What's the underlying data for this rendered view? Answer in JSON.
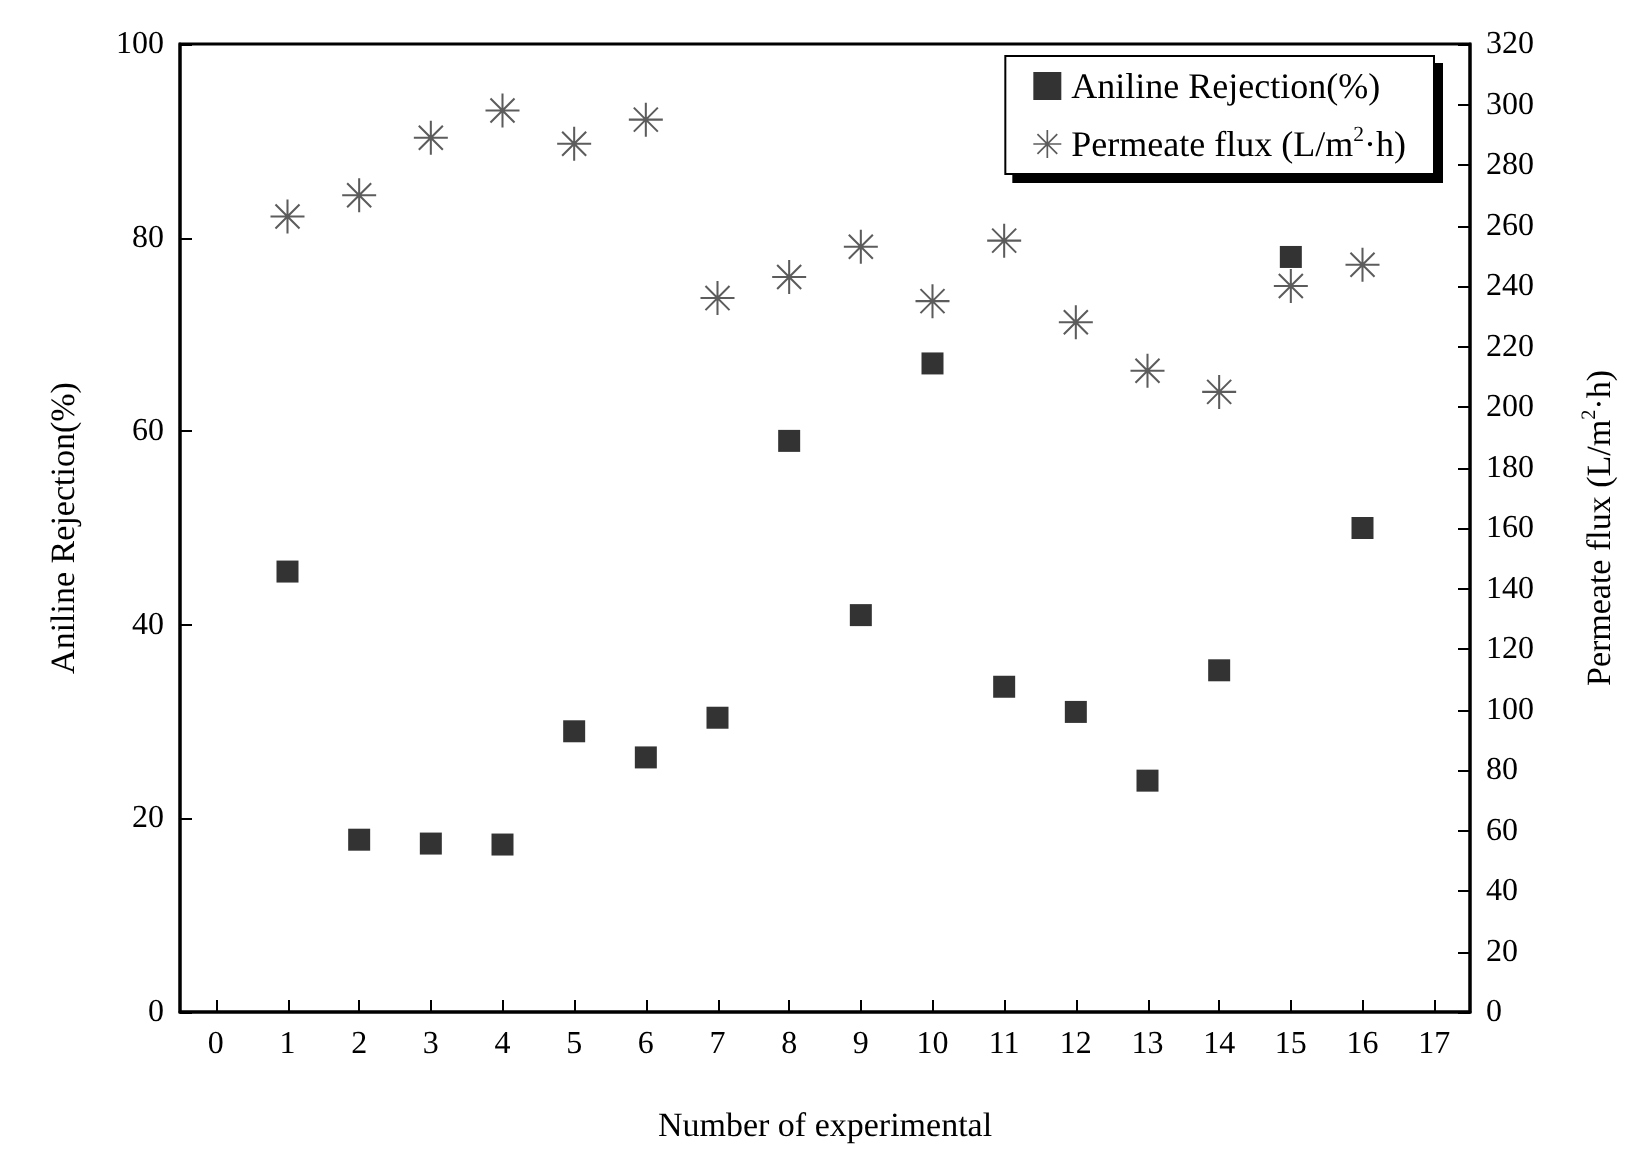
{
  "chart_data": {
    "type": "scatter",
    "xlabel": "Number of experimental",
    "ylabel": "Aniline Rejection(%)",
    "y2label": "Permeate flux (L/m$^{2}$·h)",
    "x": [
      1,
      2,
      3,
      4,
      5,
      6,
      7,
      8,
      9,
      10,
      11,
      12,
      13,
      14,
      15,
      16
    ],
    "series": [
      {
        "name": "Aniline Rejection(%)",
        "color": "#000000",
        "marker": "square",
        "values": [
          45.5,
          17.8,
          17.4,
          17.3,
          29,
          26.3,
          30.4,
          59,
          41,
          67,
          33.6,
          31,
          23.9,
          35.3,
          78,
          50
        ]
      },
      {
        "name": "Permeate flux (L/m$^{2}$·h)",
        "color": "#333333",
        "marker": "star",
        "axis": "y2",
        "values": [
          263,
          270,
          289,
          298,
          287,
          295,
          236,
          243,
          253,
          235,
          255,
          228,
          212,
          205,
          240,
          247
        ]
      }
    ],
    "xlim": [
      -0.5,
      17.5
    ],
    "xticks": [
      0,
      1,
      2,
      3,
      4,
      5,
      6,
      7,
      8,
      9,
      10,
      11,
      12,
      13,
      14,
      15,
      16,
      17
    ],
    "ylim": [
      0,
      100
    ],
    "yticks": [
      0,
      20,
      40,
      60,
      80,
      100
    ],
    "y2lim": [
      0,
      320
    ],
    "y2ticks": [
      0,
      20,
      40,
      60,
      80,
      100,
      120,
      140,
      160,
      180,
      200,
      220,
      240,
      260,
      280,
      300,
      320
    ],
    "legend": "top right",
    "grid": false
  }
}
